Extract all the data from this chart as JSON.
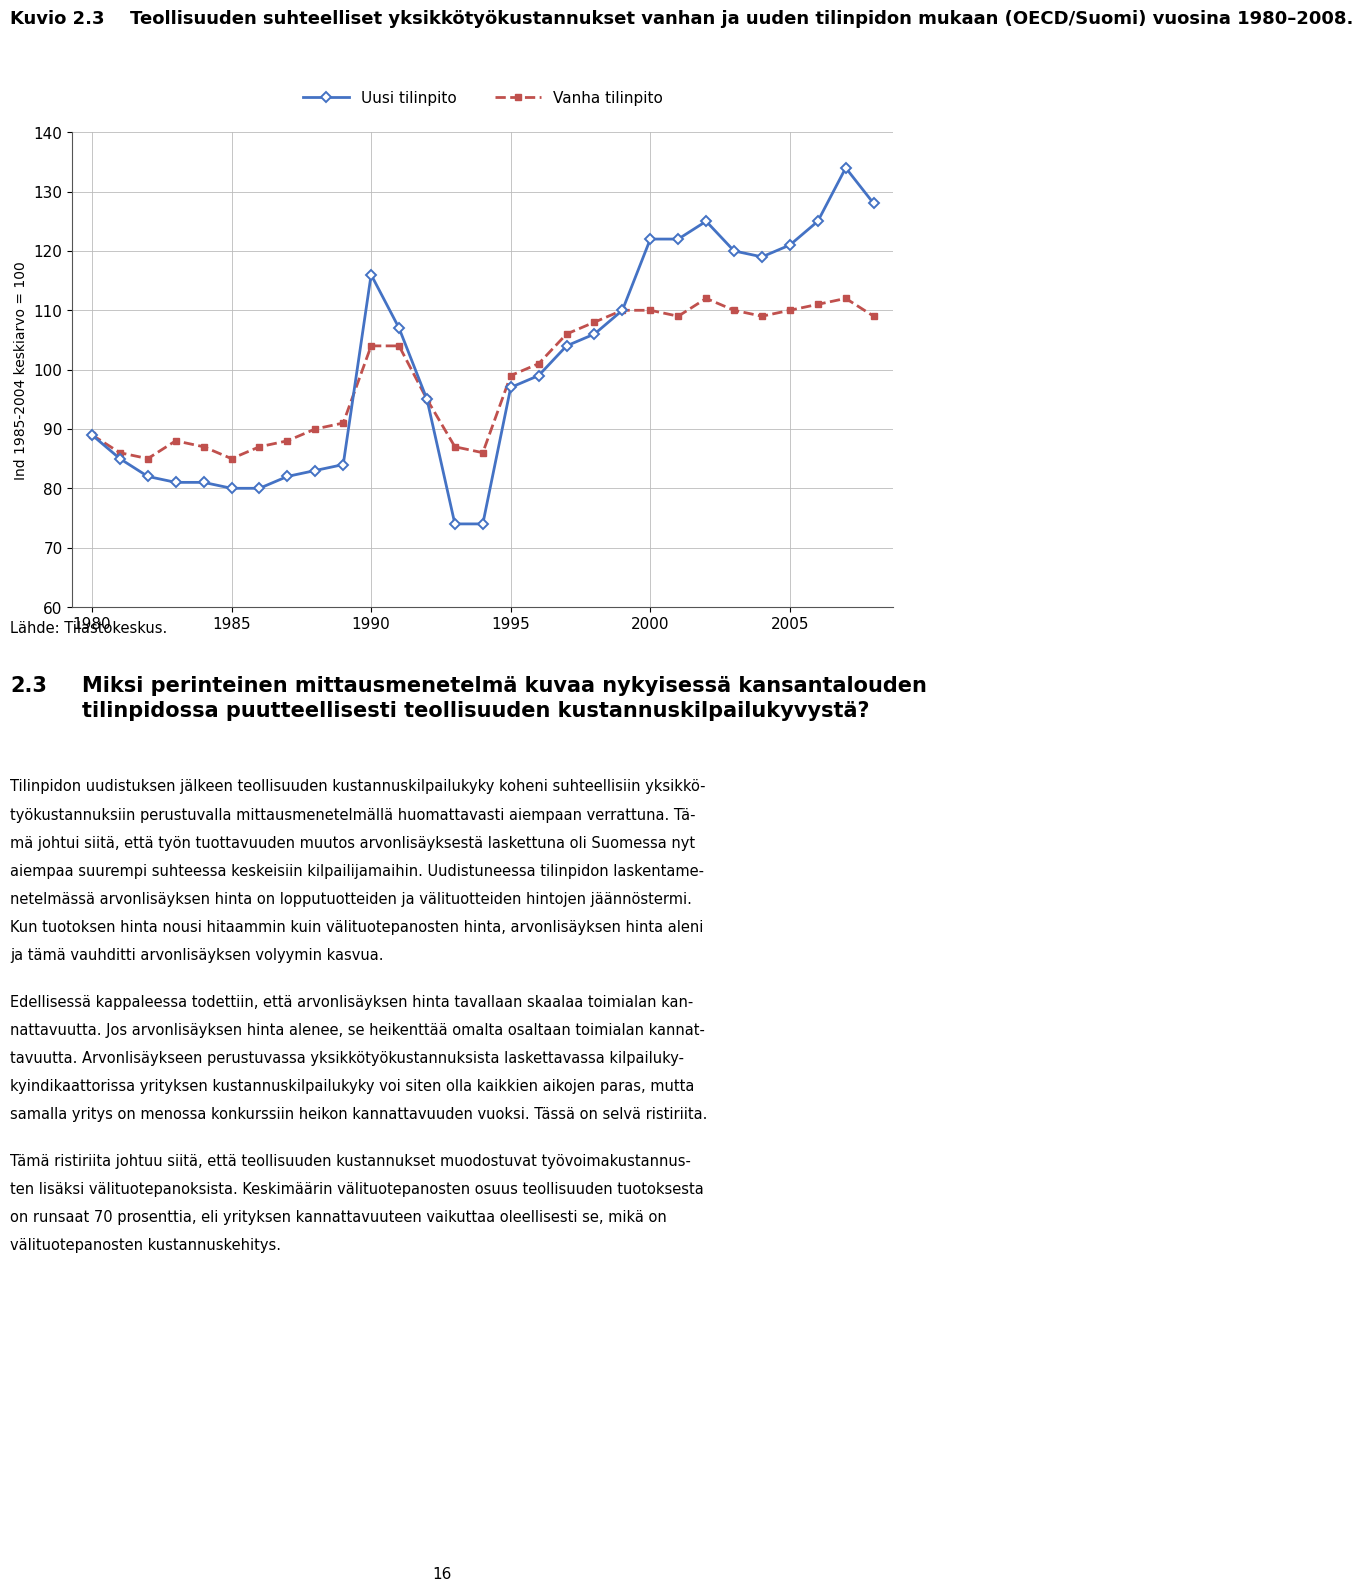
{
  "title_kuvio": "Kuvio 2.3",
  "title_text": "Teollisuuden suhteelliset yksikkötyökustannukset vanhan ja uuden tilinpidon mukaan (OECD/Suomi) vuosina 1980–2008.",
  "legend_uusi": "Uusi tilinpito",
  "legend_vanha": "Vanha tilinpito",
  "ylabel": "Ind 1985-2004 keskiarvo = 100",
  "ylim": [
    60,
    140
  ],
  "yticks": [
    60,
    70,
    80,
    90,
    100,
    110,
    120,
    130,
    140
  ],
  "xticks": [
    1980,
    1985,
    1990,
    1995,
    2000,
    2005
  ],
  "source": "Lähde: Tilastokeskus.",
  "section_num": "2.3",
  "section_title": "Miksi perinteinen mittausmenetelmä kuvaa nykyisessä kansantalouden tilinpidossa puutteellisesti teollisuuden kustannuskilpailukyvystä?",
  "para1": "Tilinpidon uudistuksen jälkeen teollisuuden kustannuskilpailukyky koheni suhteellisiin yksikkö-\ntyökustannuksiin perustuvalla mittausmenetelmällä huomattavasti aiempaan verrattuna. Tä-\nmä johtui siitä, että työn tuottavuuden muutos arvonlisäyksestä laskettuna oli Suomessa nyt\naiempaa suurempi suhteessa keskeisiin kilpailijamaihin. Uudistuneessa tilinpidon laskentame-\nnetelmässä arvonlisäyksen hinta on lopputuotteiden ja välituotteiden hintojen jäännöstermi.\nKun tuotoksen hinta nousi hitaammin kuin välituotepanosten hinta, arvonlisäyksen hinta aleni\nja tämä vauhditti arvonlisäyksen volyymin kasvua.",
  "para2": "Edellisessä kappaleessa todettiin, että arvonlisäyksen hinta tavallaan skaalaa toimialan kan-\nnattavuutta. Jos arvonlisäyksen hinta alenee, se heikenttää omalta osaltaan toimialan kannat-\ntavuutta. Arvonlisäykseen perustuvassa yksikkötyökustannuksista laskettavassa kilpailuky-\nkyindikaattorissa yrityksen kustannuskilpailukyky voi siten olla kaikkien aikojen paras, mutta\nsamalla yritys on menossa konkurssiin heikon kannattavuuden vuoksi. Tässä on selvä ristiriita.",
  "para3": "Tämä ristiriita johtuu siitä, että teollisuuden kustannukset muodostuvat työvoimakustannus-\nten lisäksi välituotepanoksista. Keskimäärin välituotepanosten osuus teollisuuden tuotoksesta\non runsaat 70 prosenttia, eli yrityksen kannattavuuteen vaikuttaa oleellisesti se, mikä on\nvälituotepanosten kustannuskehitys.",
  "page_num": "16",
  "years": [
    1980,
    1981,
    1982,
    1983,
    1984,
    1985,
    1986,
    1987,
    1988,
    1989,
    1990,
    1991,
    1992,
    1993,
    1994,
    1995,
    1996,
    1997,
    1998,
    1999,
    2000,
    2001,
    2002,
    2003,
    2004,
    2005,
    2006,
    2007,
    2008
  ],
  "uusi_values": [
    89,
    85,
    82,
    81,
    81,
    80,
    80,
    82,
    83,
    84,
    116,
    107,
    95,
    74,
    74,
    97,
    99,
    104,
    106,
    110,
    122,
    122,
    125,
    120,
    119,
    121,
    125,
    134,
    128
  ],
  "vanha_values": [
    89,
    86,
    85,
    88,
    87,
    85,
    87,
    88,
    90,
    91,
    104,
    104,
    95,
    87,
    86,
    99,
    101,
    106,
    108,
    110,
    110,
    109,
    112,
    110,
    109,
    110,
    111,
    112,
    109
  ],
  "uusi_color": "#4472C4",
  "vanha_color": "#C0504D",
  "background_color": "#FFFFFF",
  "grid_color": "#BBBBBB"
}
